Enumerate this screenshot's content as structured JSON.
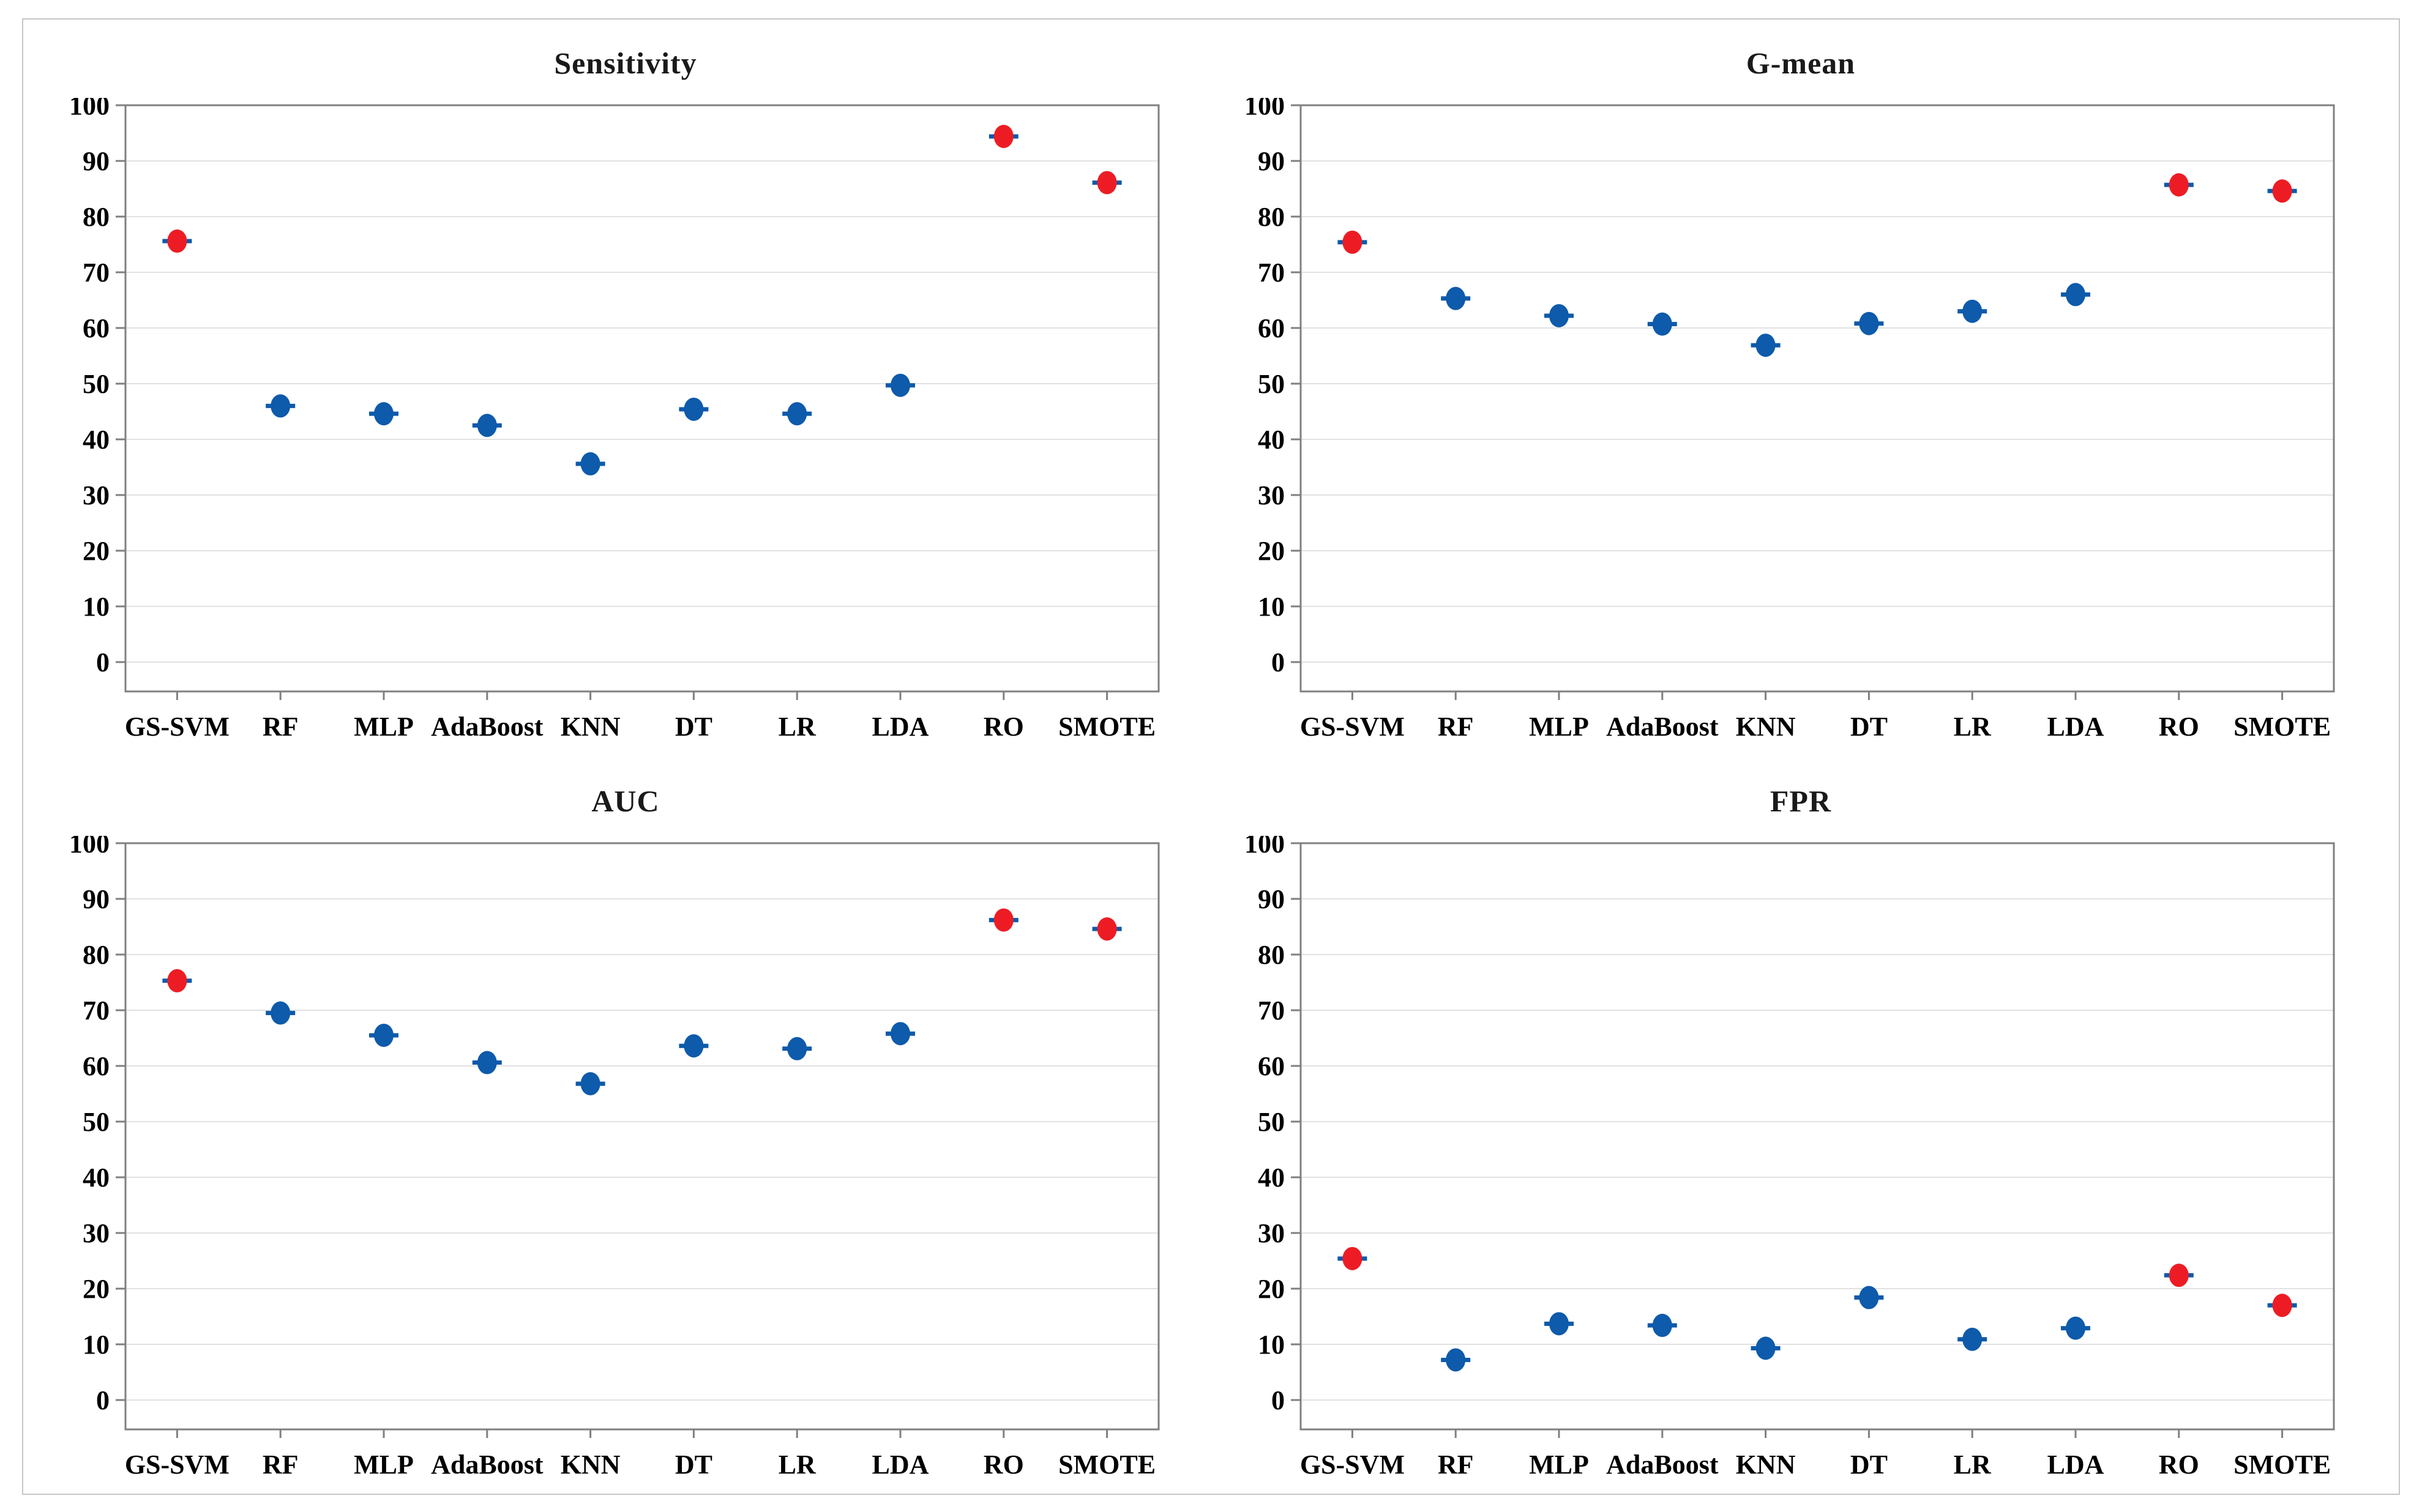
{
  "figure": {
    "background": "#ffffff",
    "border_color": "#c6c6c6"
  },
  "style": {
    "highlight_color": "#ED1C24",
    "normal_color": "#0E5AAB",
    "grid_color": "#e2e2e2",
    "box_color": "#808080",
    "tick_color": "#808080",
    "label_color": "#000000",
    "title_color": "#1a1a1a"
  },
  "highlight_labels": [
    "GS-SVM",
    "RO",
    "SMOTE"
  ],
  "chart_data": [
    {
      "type": "scatter",
      "title": "Sensitivity",
      "categories": [
        "GS-SVM",
        "RF",
        "MLP",
        "AdaBoost",
        "KNN",
        "DT",
        "LR",
        "LDA",
        "RO",
        "SMOTE"
      ],
      "values": [
        75.6,
        46.0,
        44.6,
        42.5,
        35.6,
        45.4,
        44.6,
        49.7,
        94.4,
        86.1
      ],
      "xlabel": "",
      "ylabel": "",
      "ylim": [
        0,
        100
      ],
      "ytick_step": 10,
      "grid": true,
      "legend": "none"
    },
    {
      "type": "scatter",
      "title": "G-mean",
      "categories": [
        "GS-SVM",
        "RF",
        "MLP",
        "AdaBoost",
        "KNN",
        "DT",
        "LR",
        "LDA",
        "RO",
        "SMOTE"
      ],
      "values": [
        75.4,
        65.3,
        62.2,
        60.7,
        56.9,
        60.8,
        63.0,
        66.0,
        85.7,
        84.6
      ],
      "xlabel": "",
      "ylabel": "",
      "ylim": [
        0,
        100
      ],
      "ytick_step": 10,
      "grid": true,
      "legend": "none"
    },
    {
      "type": "scatter",
      "title": "AUC",
      "categories": [
        "GS-SVM",
        "RF",
        "MLP",
        "AdaBoost",
        "KNN",
        "DT",
        "LR",
        "LDA",
        "RO",
        "SMOTE"
      ],
      "values": [
        75.3,
        69.5,
        65.5,
        60.6,
        56.8,
        63.6,
        63.1,
        65.8,
        86.2,
        84.6
      ],
      "xlabel": "",
      "ylabel": "",
      "ylim": [
        0,
        100
      ],
      "ytick_step": 10,
      "grid": true,
      "legend": "none"
    },
    {
      "type": "scatter",
      "title": "FPR",
      "categories": [
        "GS-SVM",
        "RF",
        "MLP",
        "AdaBoost",
        "KNN",
        "DT",
        "LR",
        "LDA",
        "RO",
        "SMOTE"
      ],
      "values": [
        25.4,
        7.2,
        13.7,
        13.4,
        9.3,
        18.4,
        10.9,
        12.9,
        22.4,
        17.0
      ],
      "xlabel": "",
      "ylabel": "",
      "ylim": [
        0,
        100
      ],
      "ytick_step": 10,
      "grid": true,
      "legend": "none"
    }
  ]
}
